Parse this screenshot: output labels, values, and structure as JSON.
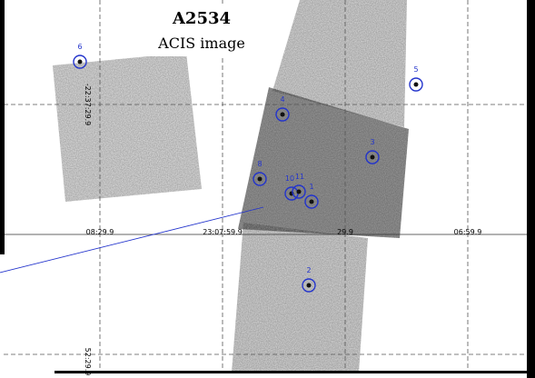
{
  "header": {
    "title": "A2534",
    "subtitle": "ACIS image"
  },
  "sources": [
    {
      "label": "1"
    },
    {
      "label": "2"
    },
    {
      "label": "3"
    },
    {
      "label": "4"
    },
    {
      "label": "5"
    },
    {
      "label": "6"
    },
    {
      "label": "8"
    },
    {
      "label": "10"
    },
    {
      "label": "11"
    }
  ],
  "ra_labels": [
    "08:29.9",
    "23:07:59.9",
    "29.9",
    "06:59.9"
  ],
  "dec_labels": [
    "-22:37:29.9",
    "52:29.9"
  ]
}
